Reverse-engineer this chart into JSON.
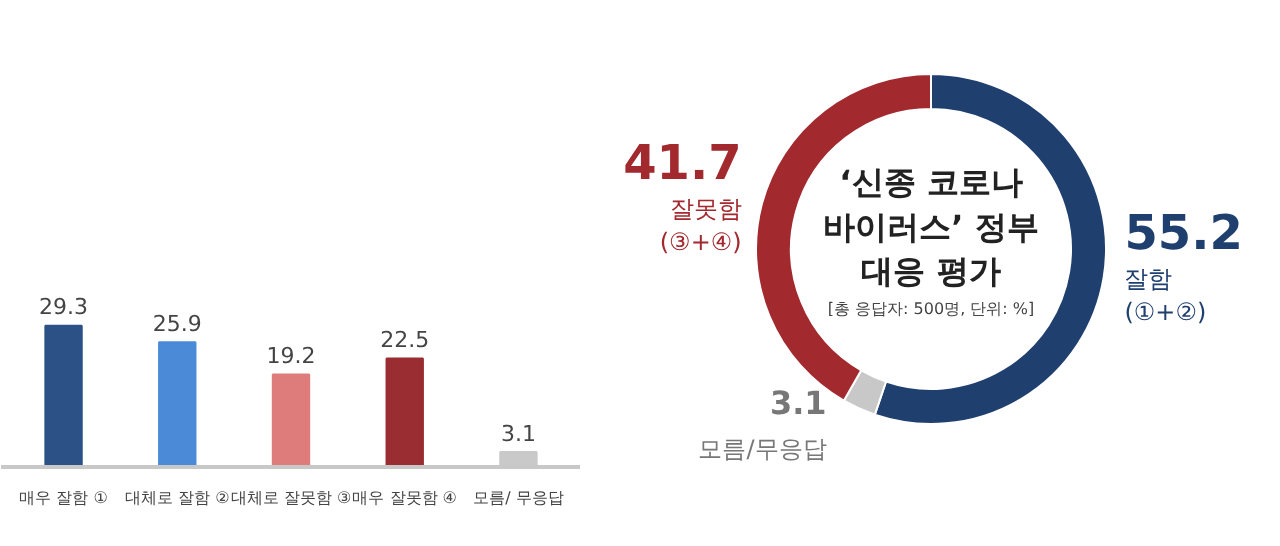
{
  "chart_data": [
    {
      "type": "bar",
      "categories": [
        "매우 잘함 ①",
        "대체로 잘함 ②",
        "대체로 잘못함 ③",
        "매우 잘못함 ④",
        "모름/ 무응답"
      ],
      "values": [
        29.3,
        25.9,
        19.2,
        22.5,
        3.1
      ],
      "colors": [
        "#2b5187",
        "#4a8ad6",
        "#de7b7b",
        "#9a2d31",
        "#c9c9c9"
      ],
      "data_labels": true
    },
    {
      "type": "donut",
      "title": "‘신종 코로나 바이러스’ 정부 대응 평가",
      "categories": [
        "잘함 (①+②)",
        "모름/무응답",
        "잘못함 (③+④)"
      ],
      "values": [
        55.2,
        3.1,
        41.7
      ],
      "colors": [
        "#1f3f6f",
        "#c8c8c8",
        "#a2292e"
      ],
      "data_labels": true,
      "annotations": [
        "[총 응답자: 500명, 단위: %]"
      ]
    }
  ]
}
